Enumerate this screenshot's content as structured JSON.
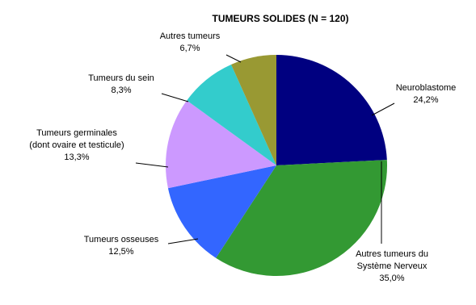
{
  "chart_data": {
    "type": "pie",
    "title": "TUMEURS  SOLIDES (N = 120)",
    "categories": [
      "Neuroblastome",
      "Autres tumeurs du\nSystème Nerveux",
      "Tumeurs osseuses",
      "Tumeurs germinales\n(dont ovaire et testicule)",
      "Tumeurs du sein",
      "Autres tumeurs"
    ],
    "values": [
      24.2,
      35.0,
      12.5,
      13.3,
      8.3,
      6.7
    ],
    "value_labels": [
      "24,2%",
      "35,0%",
      "12,5%",
      "13,3%",
      "8,3%",
      "6,7%"
    ],
    "colors": [
      "#000080",
      "#339933",
      "#3366ff",
      "#cc99ff",
      "#33cccc",
      "#999933"
    ]
  }
}
